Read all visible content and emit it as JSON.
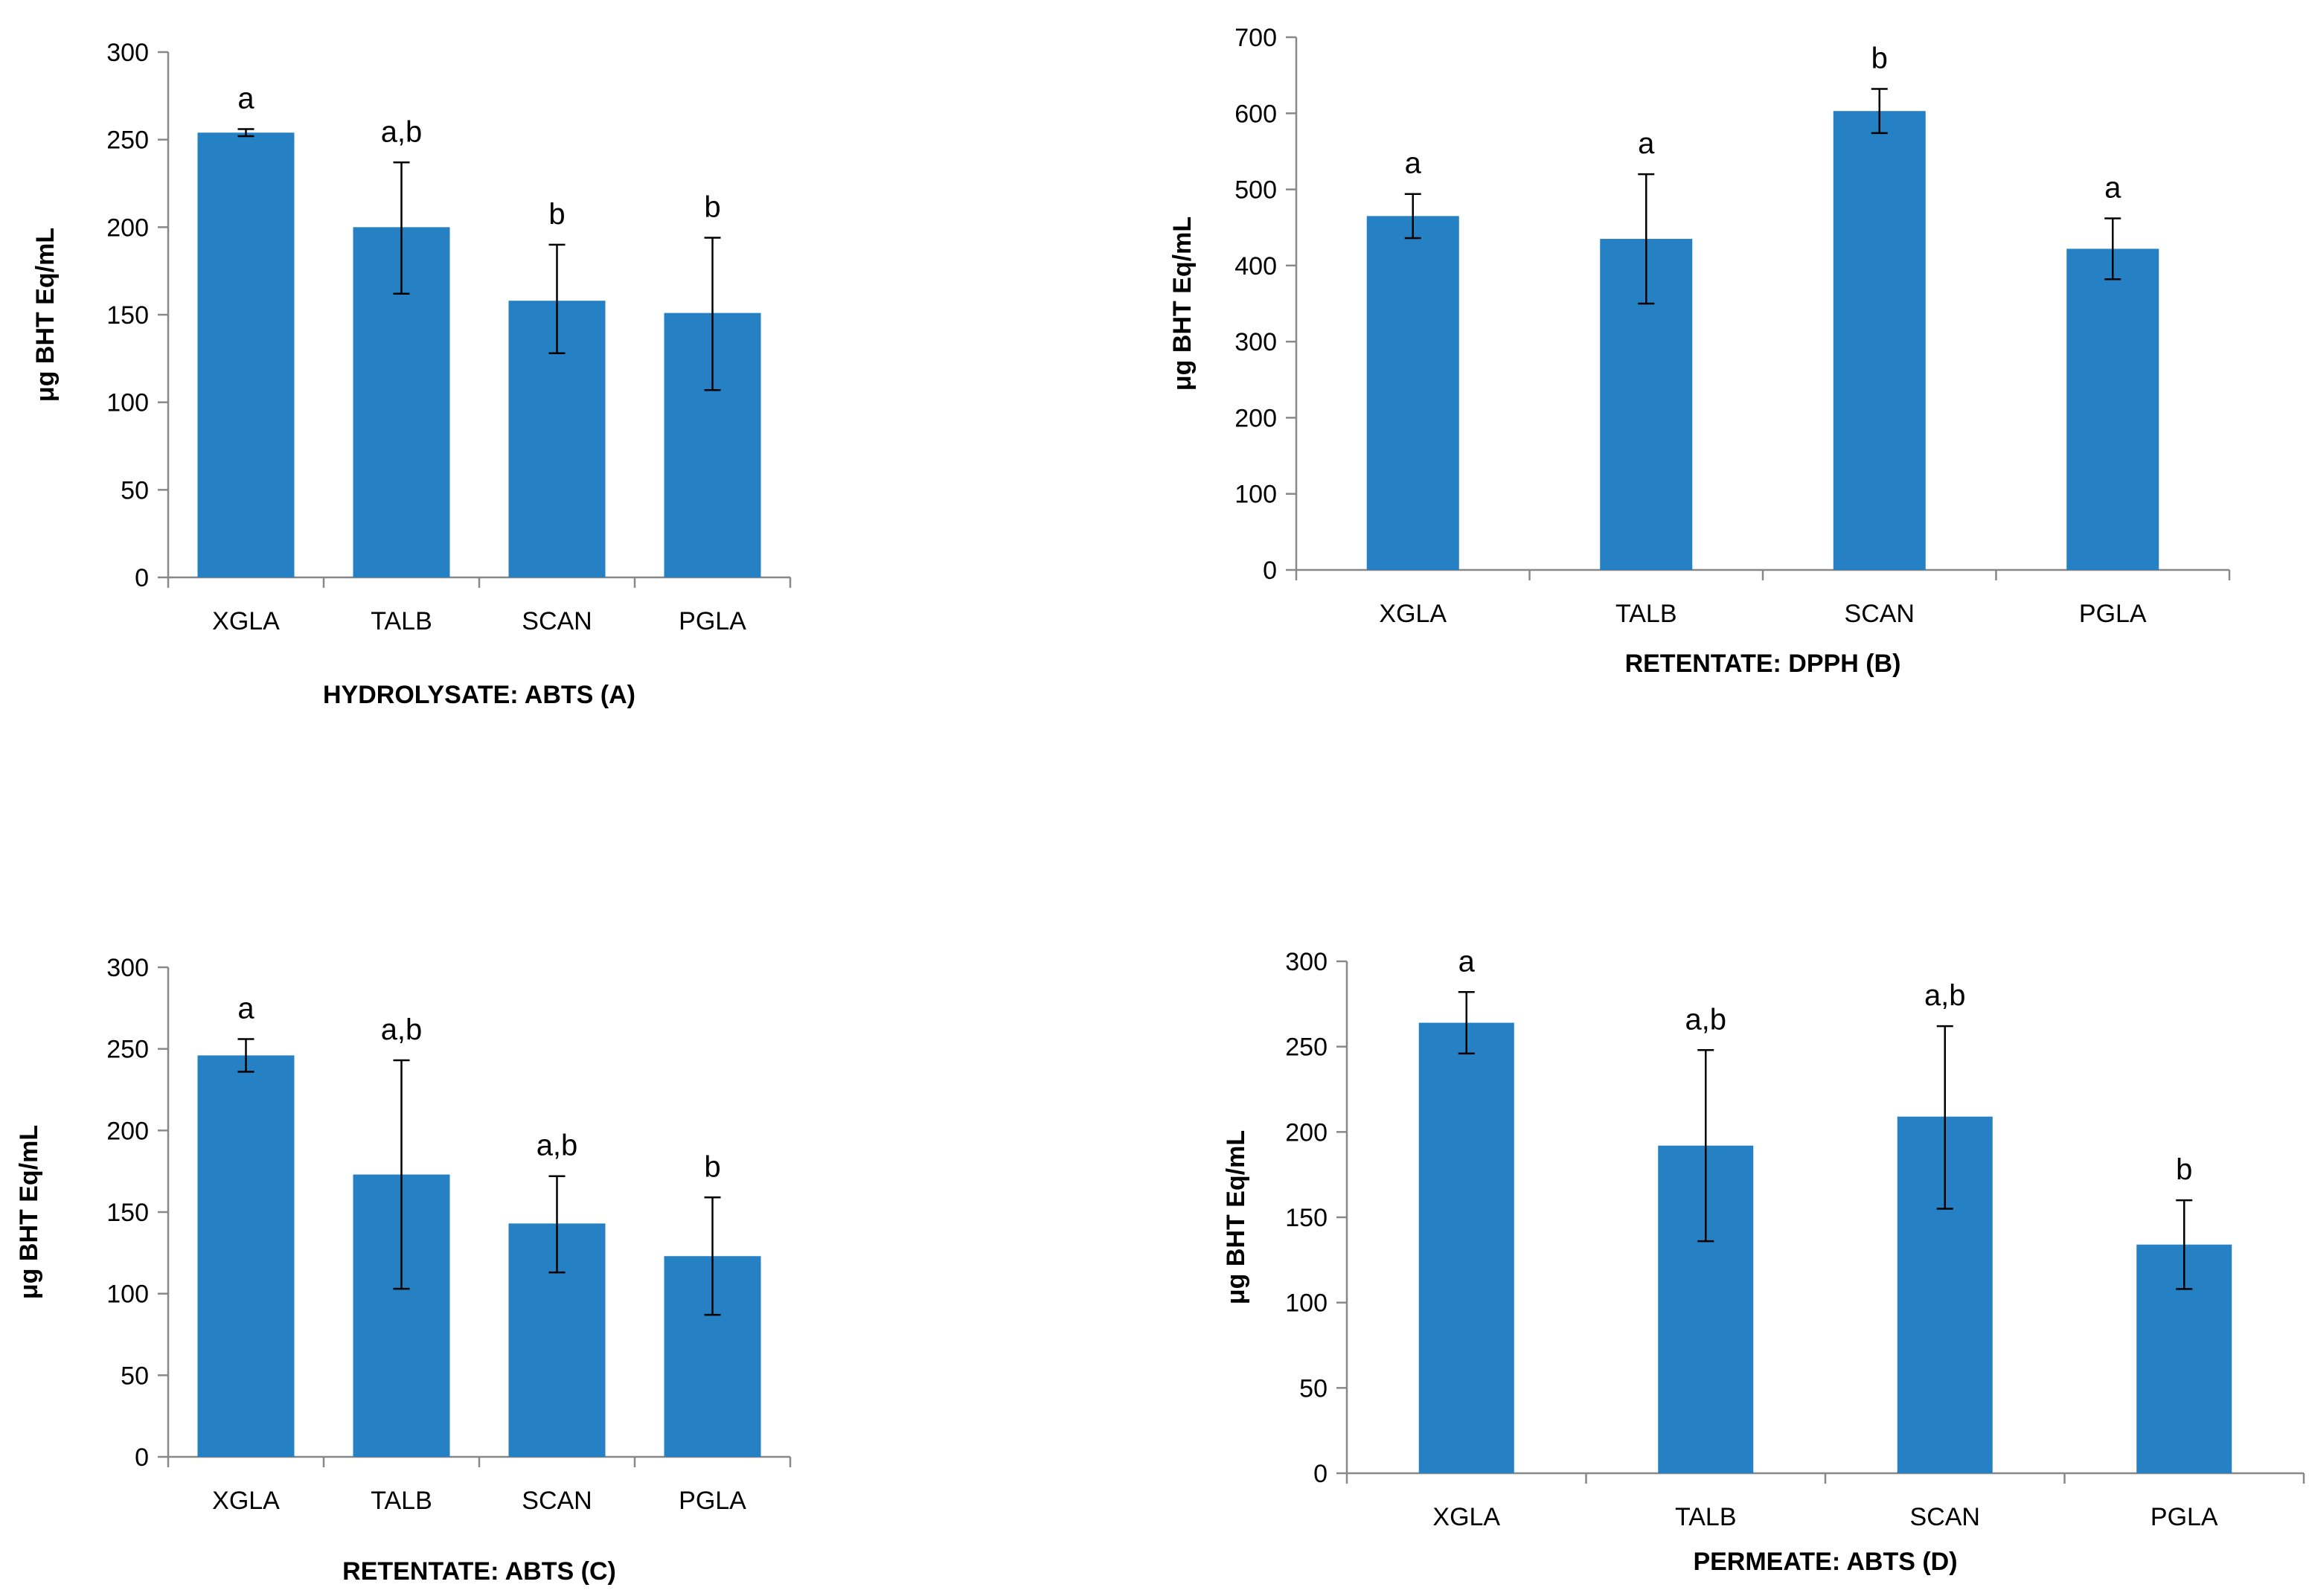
{
  "chart_data": [
    {
      "type": "bar",
      "xlabel": "HYDROLYSATE: ABTS (A)",
      "ylabel": "μg BHT Eq/mL",
      "ylim": [
        0,
        300
      ],
      "yticks": [
        0,
        50,
        100,
        150,
        200,
        250,
        300
      ],
      "categories": [
        "XGLA",
        "TALB",
        "SCAN",
        "PGLA"
      ],
      "values": [
        254,
        200,
        158,
        151
      ],
      "error_low": [
        252,
        162,
        128,
        107
      ],
      "error_high": [
        256,
        237,
        190,
        194
      ],
      "letters": [
        "a",
        "a,b",
        "b",
        "b"
      ],
      "bar_color": "#2581C4",
      "grid": false,
      "legend": "none"
    },
    {
      "type": "bar",
      "xlabel": "RETENTATE: DPPH (B)",
      "ylabel": "μg BHT Eq/mL",
      "ylim": [
        0,
        700
      ],
      "yticks": [
        0,
        100,
        200,
        300,
        400,
        500,
        600,
        700
      ],
      "categories": [
        "XGLA",
        "TALB",
        "SCAN",
        "PGLA"
      ],
      "values": [
        465,
        435,
        603,
        422
      ],
      "error_low": [
        436,
        350,
        574,
        382
      ],
      "error_high": [
        494,
        520,
        632,
        462
      ],
      "letters": [
        "a",
        "a",
        "b",
        "a"
      ],
      "bar_color": "#2581C4",
      "grid": false,
      "legend": "none"
    },
    {
      "type": "bar",
      "xlabel": "RETENTATE: ABTS (C)",
      "ylabel": "μg BHT Eq/mL",
      "ylim": [
        0,
        300
      ],
      "yticks": [
        0,
        50,
        100,
        150,
        200,
        250,
        300
      ],
      "categories": [
        "XGLA",
        "TALB",
        "SCAN",
        "PGLA"
      ],
      "values": [
        246,
        173,
        143,
        123
      ],
      "error_low": [
        236,
        103,
        113,
        87
      ],
      "error_high": [
        256,
        243,
        172,
        159
      ],
      "letters": [
        "a",
        "a,b",
        "a,b",
        "b"
      ],
      "bar_color": "#2581C4",
      "grid": false,
      "legend": "none"
    },
    {
      "type": "bar",
      "xlabel": "PERMEATE: ABTS (D)",
      "ylabel": "μg BHT Eq/mL",
      "ylim": [
        0,
        300
      ],
      "yticks": [
        0,
        50,
        100,
        150,
        200,
        250,
        300
      ],
      "categories": [
        "XGLA",
        "TALB",
        "SCAN",
        "PGLA"
      ],
      "values": [
        264,
        192,
        209,
        134
      ],
      "error_low": [
        246,
        136,
        155,
        108
      ],
      "error_high": [
        282,
        248,
        262,
        160
      ],
      "letters": [
        "a",
        "a,b",
        "a,b",
        "b"
      ],
      "bar_color": "#2581C4",
      "grid": false,
      "legend": "none"
    }
  ]
}
